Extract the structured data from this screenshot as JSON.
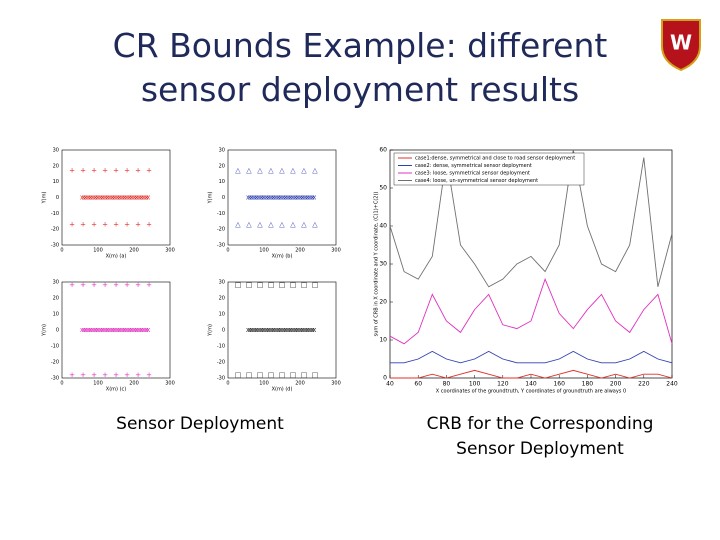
{
  "header": {
    "title": "CR Bounds Example: different sensor deployment results",
    "logo": "W"
  },
  "left_figure": {
    "caption": "Sensor Deployment",
    "ylabel": "Y(m)",
    "yticks": [
      30,
      20,
      10,
      0,
      -10,
      -20,
      -30
    ],
    "xticks": [
      0,
      100,
      200,
      300
    ],
    "xlabels": [
      "X(m)   (a)",
      "X(m)   (b)",
      "X(m)   (c)",
      "X(m)   (d)"
    ]
  },
  "right_caption": "CRB for the Corresponding Sensor Deployment",
  "chart_data": {
    "type": "line",
    "xlabel": "X coordinates of the groundtruth, Y coordinates of groundtruth are always 0",
    "ylabel": "sum of CRB in X coordinate and Y coordinate, (C(1)+C(2))",
    "x": [
      40,
      50,
      60,
      70,
      80,
      90,
      100,
      110,
      120,
      130,
      140,
      150,
      160,
      170,
      180,
      190,
      200,
      210,
      220,
      230,
      240
    ],
    "xlim": [
      40,
      240
    ],
    "xticks": [
      40,
      60,
      80,
      100,
      120,
      140,
      160,
      180,
      200,
      220,
      240
    ],
    "ylim": [
      0,
      60
    ],
    "yticks": [
      0,
      10,
      20,
      30,
      40,
      50,
      60
    ],
    "series": [
      {
        "name": "case1:dense, symmetrical and close to road sensor deployment",
        "color": "#e0302a",
        "values": [
          0,
          0,
          0,
          1,
          0,
          1,
          2,
          1,
          0,
          0,
          1,
          0,
          1,
          2,
          1,
          0,
          1,
          0,
          1,
          1,
          0
        ]
      },
      {
        "name": "case2: dense, symmetrical sensor deployment",
        "color": "#3040b0",
        "values": [
          4,
          4,
          5,
          7,
          5,
          4,
          5,
          7,
          5,
          4,
          4,
          4,
          5,
          7,
          5,
          4,
          4,
          5,
          7,
          5,
          4
        ]
      },
      {
        "name": "case3: loose, symmetrical sensor deployment",
        "color": "#e030c0",
        "values": [
          11,
          9,
          12,
          22,
          15,
          12,
          18,
          22,
          14,
          13,
          15,
          26,
          17,
          13,
          18,
          22,
          15,
          12,
          18,
          22,
          9
        ]
      },
      {
        "name": "case4: loose, un-symmetrical sensor deployment",
        "color": "#707070",
        "values": [
          40,
          28,
          26,
          32,
          58,
          35,
          30,
          24,
          26,
          30,
          32,
          28,
          35,
          60,
          40,
          30,
          28,
          35,
          58,
          24,
          38
        ]
      }
    ]
  }
}
